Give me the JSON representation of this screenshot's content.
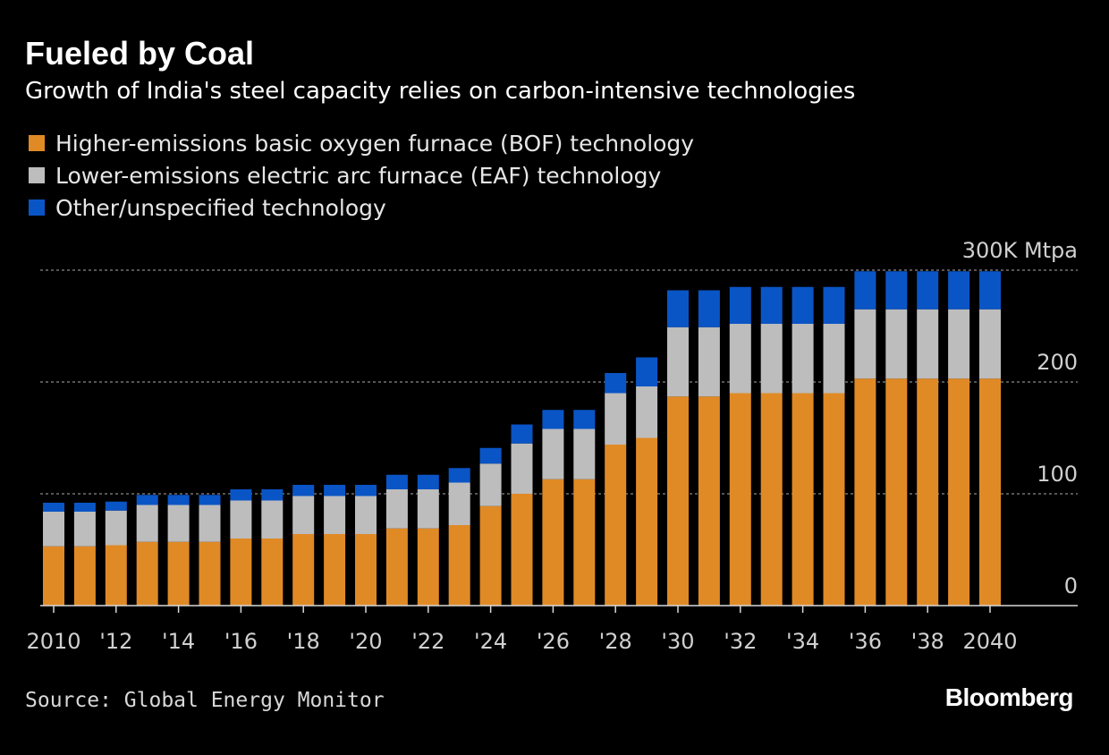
{
  "header": {
    "title": "Fueled by Coal",
    "subtitle": "Growth of India's steel capacity relies on carbon-intensive technologies"
  },
  "legend": [
    {
      "label": "Higher-emissions basic oxygen furnace (BOF) technology",
      "color": "#e08a26"
    },
    {
      "label": "Lower-emissions electric arc furnace (EAF) technology",
      "color": "#bdbdbd"
    },
    {
      "label": "Other/unspecified technology",
      "color": "#0a55c6"
    }
  ],
  "chart_data": {
    "type": "bar",
    "stacked": true,
    "categories": [
      "2010",
      "2011",
      "2012",
      "2013",
      "2014",
      "2015",
      "2016",
      "2017",
      "2018",
      "2019",
      "2020",
      "2021",
      "2022",
      "2023",
      "2024",
      "2025",
      "2026",
      "2027",
      "2028",
      "2029",
      "2030",
      "2031",
      "2032",
      "2033",
      "2034",
      "2035",
      "2036",
      "2037",
      "2038",
      "2039",
      "2040"
    ],
    "series": [
      {
        "name": "Higher-emissions basic oxygen furnace (BOF) technology",
        "color": "#e08a26",
        "values": [
          53,
          53,
          54,
          57,
          57,
          57,
          60,
          60,
          64,
          64,
          64,
          69,
          69,
          72,
          89,
          100,
          113,
          113,
          144,
          150,
          187,
          187,
          190,
          190,
          190,
          190,
          203,
          203,
          203,
          203,
          203
        ]
      },
      {
        "name": "Lower-emissions electric arc furnace (EAF) technology",
        "color": "#bdbdbd",
        "values": [
          31,
          31,
          31,
          33,
          33,
          33,
          34,
          34,
          34,
          34,
          34,
          35,
          35,
          38,
          38,
          45,
          45,
          45,
          46,
          46,
          62,
          62,
          62,
          62,
          62,
          62,
          62,
          62,
          62,
          62,
          62
        ]
      },
      {
        "name": "Other/unspecified technology",
        "color": "#0a55c6",
        "values": [
          8,
          8,
          8,
          9,
          9,
          9,
          10,
          10,
          10,
          10,
          10,
          13,
          13,
          13,
          14,
          17,
          17,
          17,
          18,
          26,
          33,
          33,
          33,
          33,
          33,
          33,
          34,
          34,
          34,
          34,
          34
        ]
      }
    ],
    "ylim": [
      0,
      300
    ],
    "yticks": [
      {
        "value": 0,
        "label": "0"
      },
      {
        "value": 100,
        "label": "100"
      },
      {
        "value": 200,
        "label": "200"
      },
      {
        "value": 300,
        "label": "300K Mtpa"
      }
    ],
    "xticks": [
      {
        "year": 2010,
        "label": "2010"
      },
      {
        "year": 2012,
        "label": "'12"
      },
      {
        "year": 2014,
        "label": "'14"
      },
      {
        "year": 2016,
        "label": "'16"
      },
      {
        "year": 2018,
        "label": "'18"
      },
      {
        "year": 2020,
        "label": "'20"
      },
      {
        "year": 2022,
        "label": "'22"
      },
      {
        "year": 2024,
        "label": "'24"
      },
      {
        "year": 2026,
        "label": "'26"
      },
      {
        "year": 2028,
        "label": "'28"
      },
      {
        "year": 2030,
        "label": "'30"
      },
      {
        "year": 2032,
        "label": "'32"
      },
      {
        "year": 2034,
        "label": "'34"
      },
      {
        "year": 2036,
        "label": "'36"
      },
      {
        "year": 2038,
        "label": "'38"
      },
      {
        "year": 2040,
        "label": "2040"
      }
    ],
    "title": "Fueled by Coal",
    "xlabel": "",
    "ylabel": ""
  },
  "footer": {
    "source": "Source: Global Energy Monitor",
    "brand": "Bloomberg"
  }
}
